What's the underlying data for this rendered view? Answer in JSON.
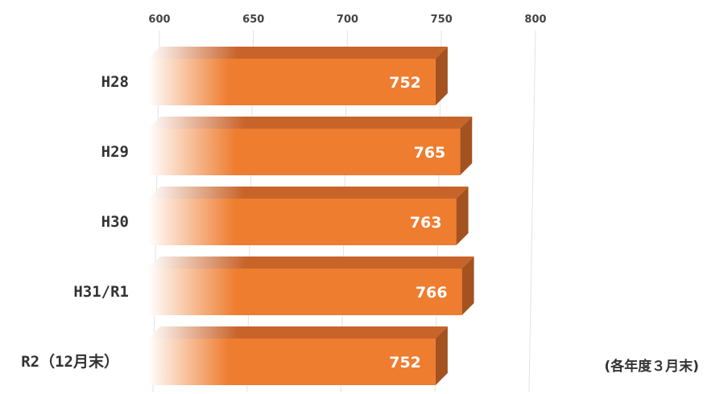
{
  "chart_data": {
    "type": "bar",
    "orientation": "horizontal",
    "categories": [
      "H28",
      "H29",
      "H30",
      "H31/R1",
      "R2（12月末）"
    ],
    "values": [
      752,
      765,
      763,
      766,
      752
    ],
    "xlim": [
      600,
      800
    ],
    "x_ticks": [
      "600",
      "650",
      "700",
      "750",
      "800"
    ],
    "x_tick_values": [
      600,
      650,
      700,
      750,
      800
    ],
    "data_labels": [
      "752",
      "765",
      "763",
      "766",
      "752"
    ],
    "note": "(各年度３月末)",
    "grid": true,
    "style": "3d",
    "colors": {
      "bar_front": "#ee7d30",
      "bar_top": "#c8632a",
      "bar_side": "#a4521f",
      "grid": "#e2e2e2"
    }
  }
}
